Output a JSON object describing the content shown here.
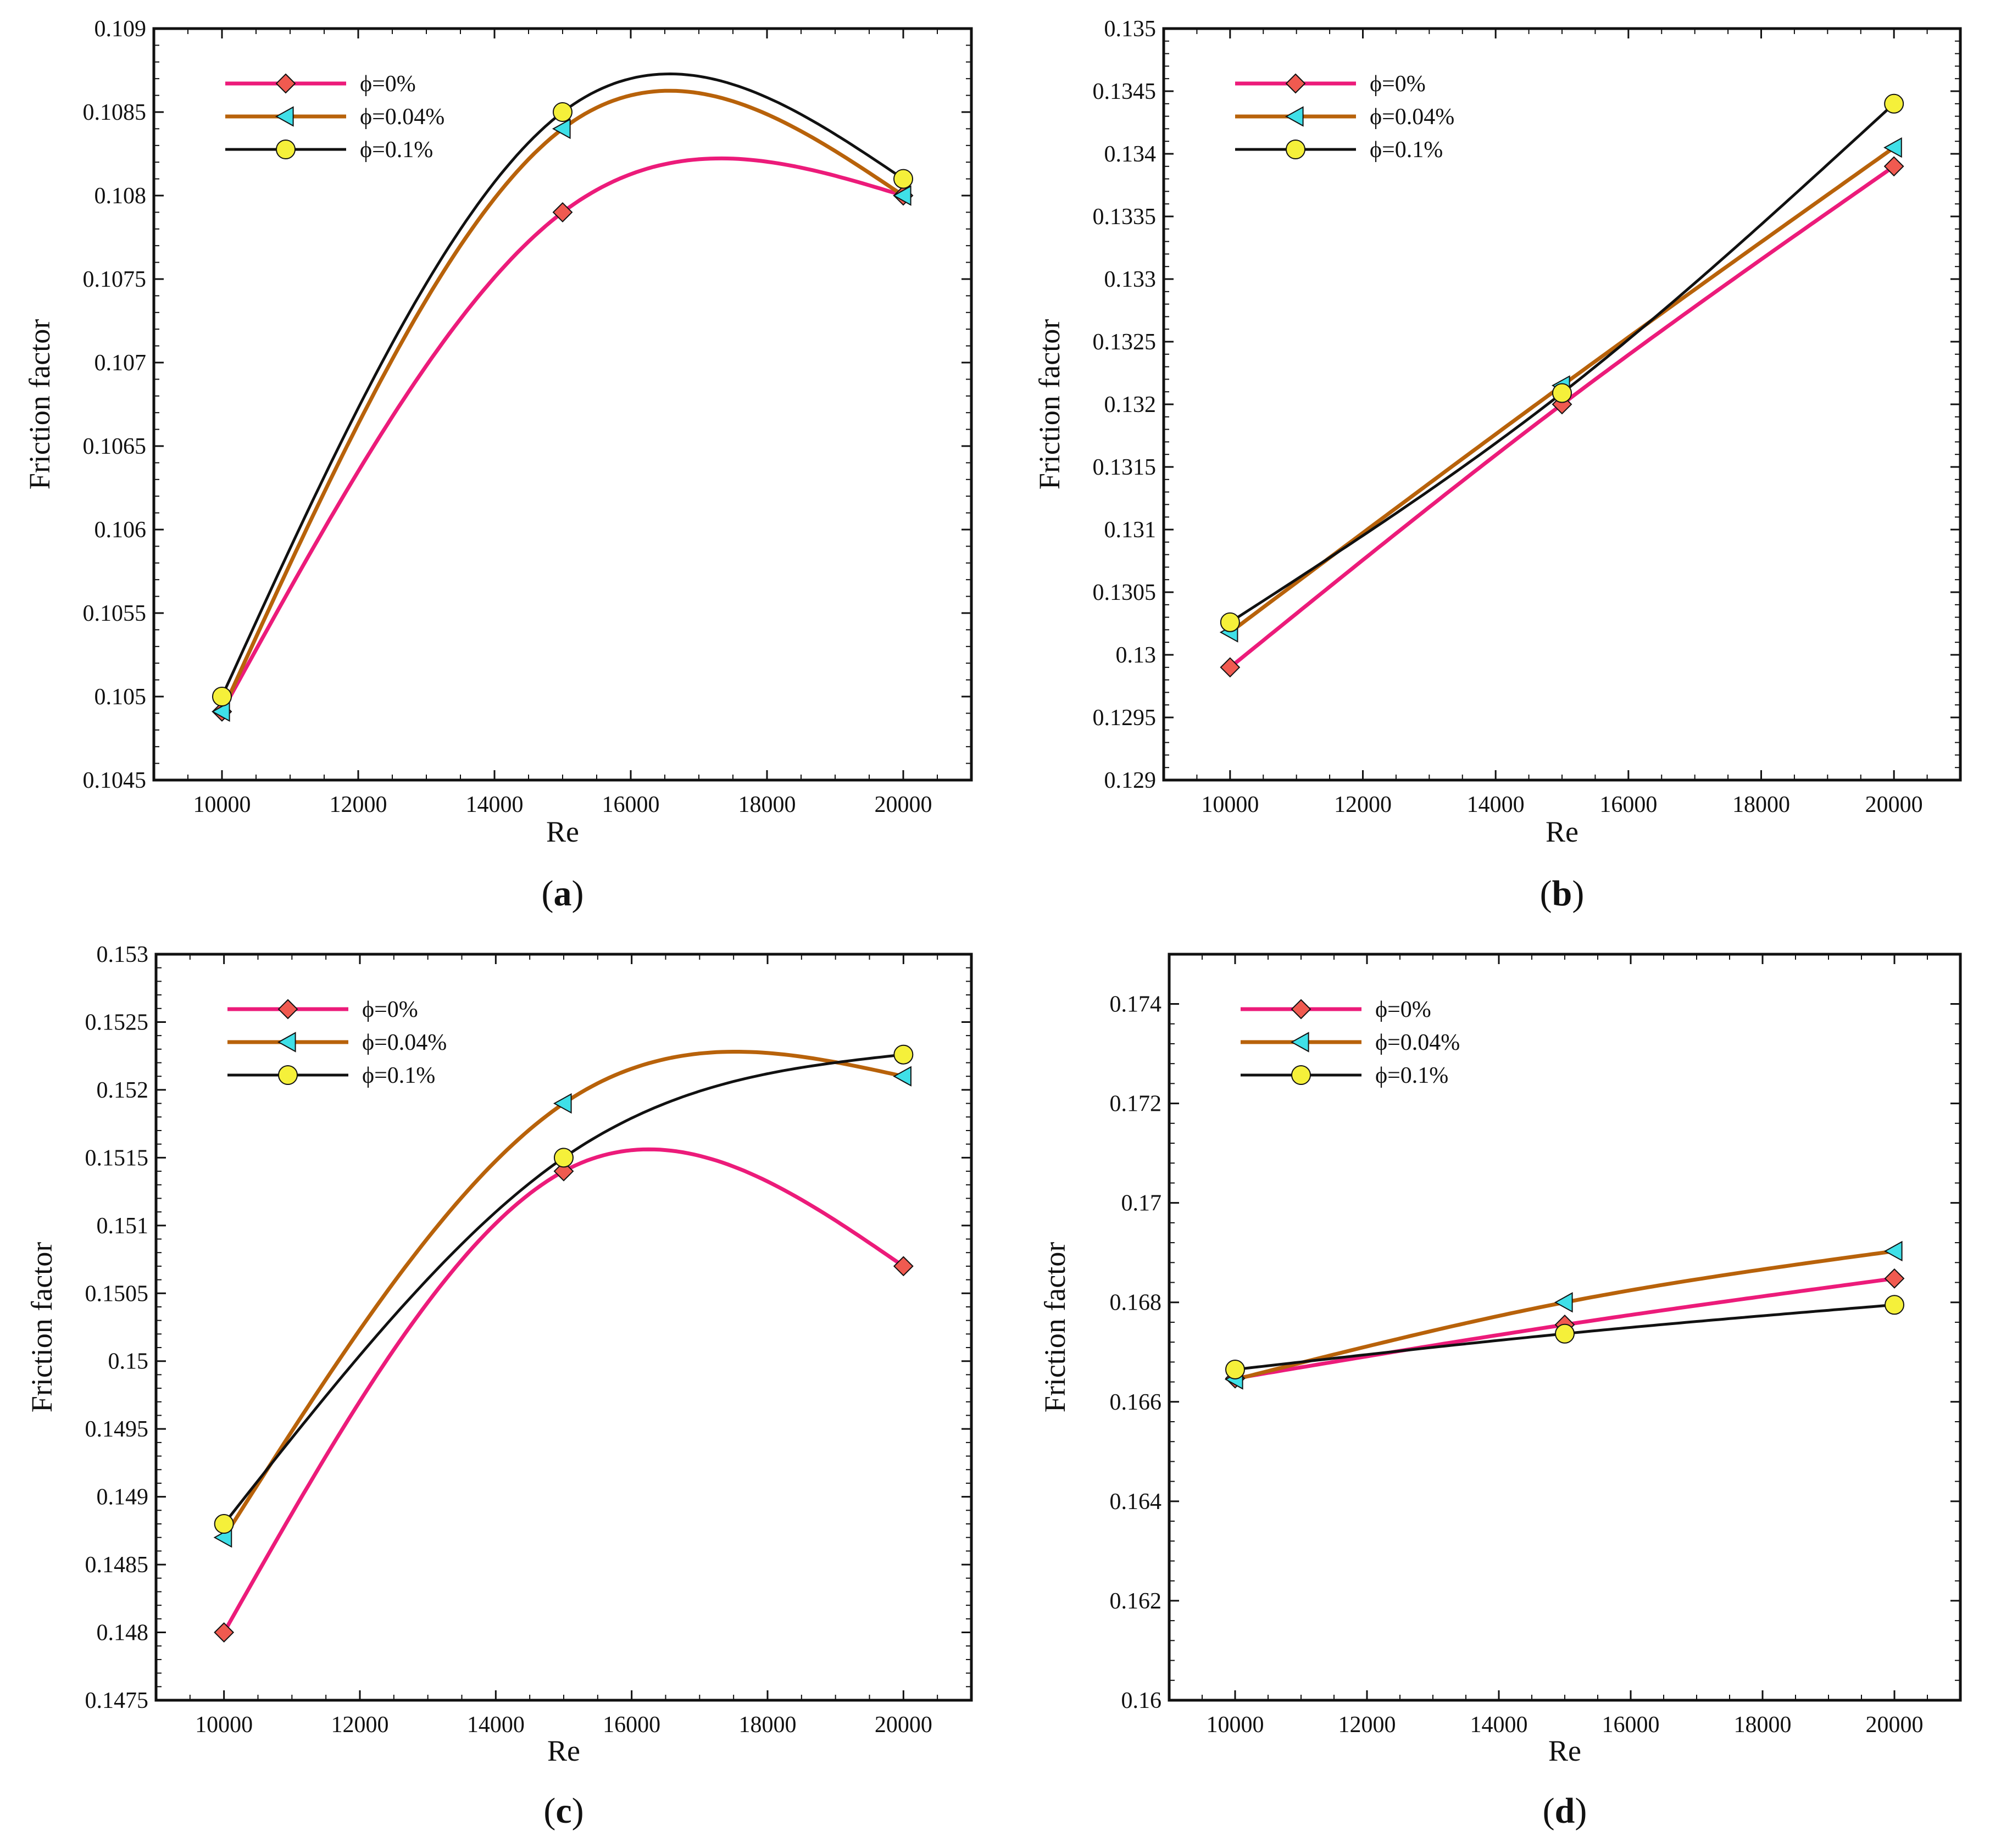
{
  "figure": {
    "panels": [
      "a",
      "b",
      "c",
      "d"
    ]
  },
  "chart_data": [
    {
      "panel": "a",
      "type": "line",
      "caption_letter": "a",
      "xlabel": "Re",
      "ylabel": "Friction factor",
      "xlim": [
        9000,
        21000
      ],
      "ylim": [
        0.1045,
        0.109
      ],
      "x_ticks": [
        "10000",
        "12000",
        "14000",
        "16000",
        "18000",
        "20000"
      ],
      "y_ticks": [
        "0.1045",
        "0.105",
        "0.1055",
        "0.106",
        "0.1065",
        "0.107",
        "0.1075",
        "0.108",
        "0.1085",
        "0.109"
      ],
      "legend_position": "top-left",
      "series": [
        {
          "name": "ϕ=0%",
          "marker": "diamond",
          "line_color": "#ec1b7a",
          "marker_color": "#f05a50",
          "x": [
            10000,
            15000,
            20000
          ],
          "values": [
            0.10491,
            0.1079,
            0.108
          ]
        },
        {
          "name": "ϕ=0.04%",
          "marker": "triangle-left",
          "line_color": "#b8620a",
          "marker_color": "#3fe0e8",
          "x": [
            10000,
            15000,
            20000
          ],
          "values": [
            0.10491,
            0.1084,
            0.108
          ]
        },
        {
          "name": "ϕ=0.1%",
          "marker": "circle",
          "line_color": "#111111",
          "marker_color": "#f5f03a",
          "x": [
            10000,
            15000,
            20000
          ],
          "values": [
            0.105,
            0.1085,
            0.1081
          ]
        }
      ]
    },
    {
      "panel": "b",
      "type": "line",
      "caption_letter": "b",
      "xlabel": "Re",
      "ylabel": "Friction factor",
      "xlim": [
        9000,
        21000
      ],
      "ylim": [
        0.129,
        0.135
      ],
      "x_ticks": [
        "10000",
        "12000",
        "14000",
        "16000",
        "18000",
        "20000"
      ],
      "y_ticks": [
        "0.129",
        "0.1295",
        "0.13",
        "0.1305",
        "0.131",
        "0.1315",
        "0.132",
        "0.1325",
        "0.133",
        "0.1335",
        "0.134",
        "0.1345",
        "0.135"
      ],
      "legend_position": "top-left",
      "series": [
        {
          "name": "ϕ=0%",
          "marker": "diamond",
          "line_color": "#ec1b7a",
          "marker_color": "#f05a50",
          "x": [
            10000,
            15000,
            20000
          ],
          "values": [
            0.1299,
            0.132,
            0.1339
          ]
        },
        {
          "name": "ϕ=0.04%",
          "marker": "triangle-left",
          "line_color": "#b8620a",
          "marker_color": "#3fe0e8",
          "x": [
            10000,
            15000,
            20000
          ],
          "values": [
            0.13018,
            0.13215,
            0.13405
          ]
        },
        {
          "name": "ϕ=0.1%",
          "marker": "circle",
          "line_color": "#111111",
          "marker_color": "#f5f03a",
          "x": [
            10000,
            15000,
            20000
          ],
          "values": [
            0.13026,
            0.13209,
            0.1344
          ]
        }
      ]
    },
    {
      "panel": "c",
      "type": "line",
      "caption_letter": "c",
      "xlabel": "Re",
      "ylabel": "Friction factor",
      "xlim": [
        9000,
        21000
      ],
      "ylim": [
        0.1475,
        0.153
      ],
      "x_ticks": [
        "10000",
        "12000",
        "14000",
        "16000",
        "18000",
        "20000"
      ],
      "y_ticks": [
        "0.1475",
        "0.148",
        "0.1485",
        "0.149",
        "0.1495",
        "0.15",
        "0.1505",
        "0.151",
        "0.1515",
        "0.152",
        "0.1525",
        "0.153"
      ],
      "legend_position": "top-left",
      "series": [
        {
          "name": "ϕ=0%",
          "marker": "diamond",
          "line_color": "#ec1b7a",
          "marker_color": "#f05a50",
          "x": [
            10000,
            15000,
            20000
          ],
          "values": [
            0.148,
            0.1514,
            0.1507
          ]
        },
        {
          "name": "ϕ=0.04%",
          "marker": "triangle-left",
          "line_color": "#b8620a",
          "marker_color": "#3fe0e8",
          "x": [
            10000,
            15000,
            20000
          ],
          "values": [
            0.1487,
            0.1519,
            0.1521
          ]
        },
        {
          "name": "ϕ=0.1%",
          "marker": "circle",
          "line_color": "#111111",
          "marker_color": "#f5f03a",
          "x": [
            10000,
            15000,
            20000
          ],
          "values": [
            0.1488,
            0.1515,
            0.15226
          ]
        }
      ]
    },
    {
      "panel": "d",
      "type": "line",
      "caption_letter": "d",
      "xlabel": "Re",
      "ylabel": "Friction factor",
      "xlim": [
        9000,
        21000
      ],
      "ylim": [
        0.16,
        0.175
      ],
      "x_ticks": [
        "10000",
        "12000",
        "14000",
        "16000",
        "18000",
        "20000"
      ],
      "y_ticks": [
        "0.16",
        "0.162",
        "0.164",
        "0.166",
        "0.168",
        "0.17",
        "0.172",
        "0.174"
      ],
      "legend_position": "top-left",
      "series": [
        {
          "name": "ϕ=0%",
          "marker": "diamond",
          "line_color": "#ec1b7a",
          "marker_color": "#f05a50",
          "x": [
            10000,
            15000,
            20000
          ],
          "values": [
            0.16647,
            0.16755,
            0.16848
          ]
        },
        {
          "name": "ϕ=0.04%",
          "marker": "triangle-left",
          "line_color": "#b8620a",
          "marker_color": "#3fe0e8",
          "x": [
            10000,
            15000,
            20000
          ],
          "values": [
            0.16645,
            0.168,
            0.16903
          ]
        },
        {
          "name": "ϕ=0.1%",
          "marker": "circle",
          "line_color": "#111111",
          "marker_color": "#f5f03a",
          "x": [
            10000,
            15000,
            20000
          ],
          "values": [
            0.16665,
            0.16737,
            0.16795
          ]
        }
      ]
    }
  ]
}
